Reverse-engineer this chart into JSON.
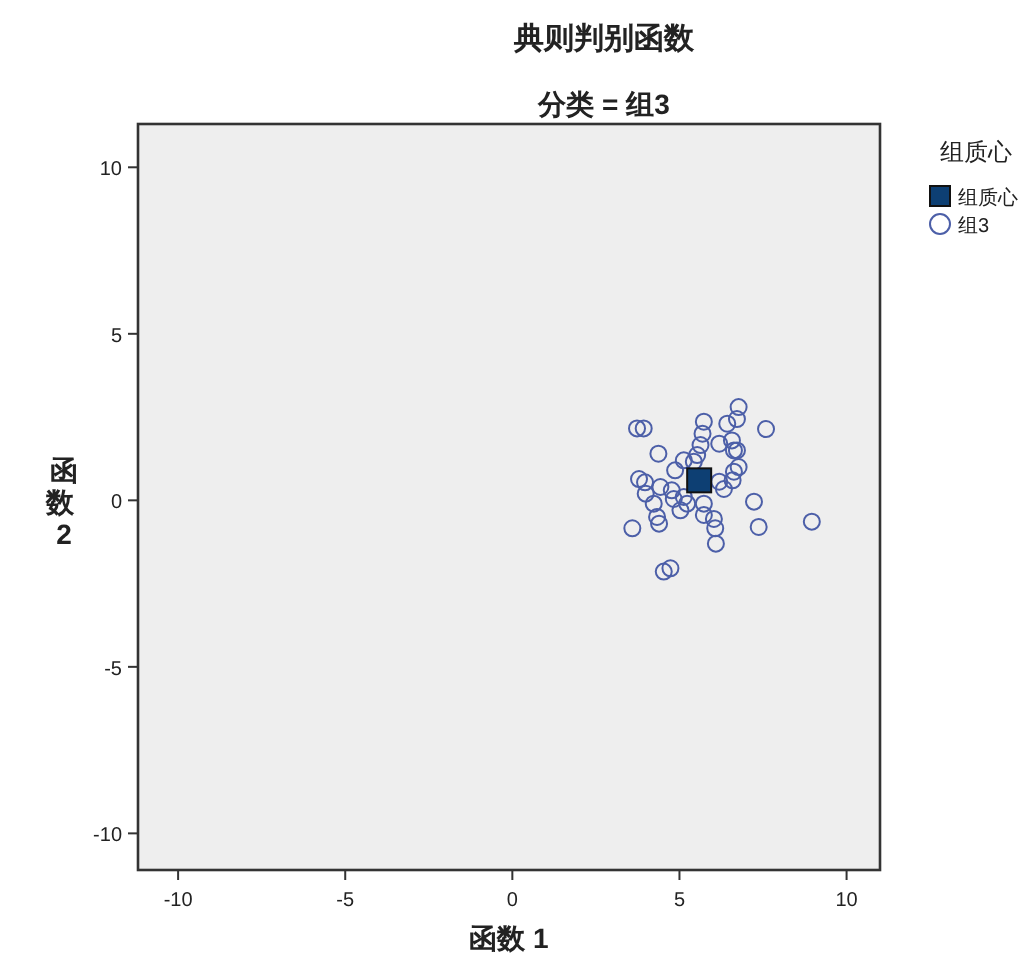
{
  "chart_data": {
    "type": "scatter",
    "title": "典则判别函数",
    "subtitle": "分类 = 组3",
    "xlabel": "函数 1",
    "ylabel": "函数 2",
    "legend_title": "组质心",
    "xlim": [
      -11.2,
      11
    ],
    "ylim": [
      -11.1,
      11.3
    ],
    "xticks": [
      -10,
      -5,
      0,
      5,
      10
    ],
    "yticks": [
      -10,
      -5,
      0,
      5,
      10
    ],
    "grid": false,
    "legend": "top right",
    "series": [
      {
        "name": "组质心",
        "color": "#0d3f73",
        "marker": "square",
        "x": [
          5.59
        ],
        "values": [
          0.6
        ]
      },
      {
        "name": "组3",
        "color": "#4c5fa8",
        "marker": "circle",
        "x": [
          3.73,
          3.93,
          4.37,
          5.73,
          5.69,
          5.63,
          5.53,
          5.43,
          5.13,
          4.87,
          6.77,
          6.72,
          6.43,
          7.59,
          6.19,
          6.57,
          6.63,
          6.72,
          6.77,
          6.63,
          6.59,
          6.19,
          6.33,
          3.79,
          3.97,
          4.43,
          4.77,
          3.99,
          4.83,
          5.13,
          5.23,
          5.03,
          5.73,
          5.73,
          4.23,
          4.33,
          4.39,
          3.59,
          6.03,
          6.07,
          6.09,
          7.23,
          7.37,
          8.96,
          4.53,
          4.73
        ],
        "values": [
          2.16,
          2.16,
          1.4,
          2.36,
          2.0,
          1.66,
          1.36,
          1.16,
          1.2,
          0.9,
          2.8,
          2.44,
          2.3,
          2.14,
          1.7,
          1.8,
          1.5,
          1.5,
          1.0,
          0.86,
          0.6,
          0.56,
          0.34,
          0.64,
          0.54,
          0.4,
          0.3,
          0.2,
          0.04,
          0.1,
          -0.1,
          -0.3,
          -0.1,
          -0.44,
          -0.1,
          -0.5,
          -0.7,
          -0.84,
          -0.56,
          -0.84,
          -1.3,
          -0.04,
          -0.8,
          -0.64,
          -2.14,
          -2.04
        ]
      }
    ]
  }
}
